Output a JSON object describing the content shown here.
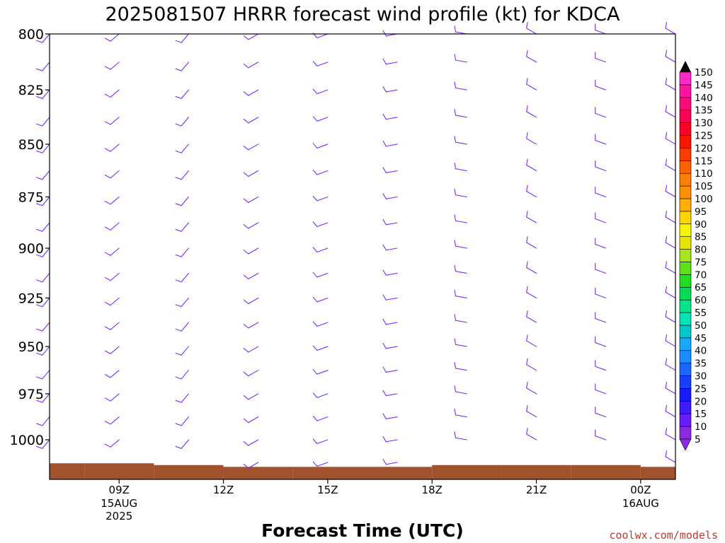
{
  "chart_data": {
    "type": "wind_profile",
    "title": "2025081507 HRRR forecast wind profile (kt) for KDCA",
    "xlabel": "Forecast Time (UTC)",
    "ylabel": "",
    "y_axis": {
      "unit": "hPa",
      "inverted": true,
      "range": [
        800,
        1022
      ],
      "ticks": [
        800,
        825,
        850,
        875,
        900,
        925,
        950,
        975,
        1000
      ]
    },
    "x_axis": {
      "range_hours": [
        7,
        25
      ],
      "ticks": [
        {
          "hour": 9,
          "label": "09Z",
          "sub": [
            "15AUG",
            "2025"
          ]
        },
        {
          "hour": 12,
          "label": "12Z",
          "sub": []
        },
        {
          "hour": 15,
          "label": "15Z",
          "sub": []
        },
        {
          "hour": 18,
          "label": "18Z",
          "sub": []
        },
        {
          "hour": 21,
          "label": "21Z",
          "sub": []
        },
        {
          "hour": 24,
          "label": "00Z",
          "sub": [
            "16AUG"
          ]
        }
      ]
    },
    "barb_color": "#7b2cff",
    "columns": [
      {
        "hour": 7,
        "direction": 220,
        "speed": 10,
        "sfc": 1013
      },
      {
        "hour": 9,
        "direction": 230,
        "speed": 10,
        "sfc": 1013
      },
      {
        "hour": 11,
        "direction": 220,
        "speed": 10,
        "sfc": 1014
      },
      {
        "hour": 13,
        "direction": 240,
        "speed": 10,
        "sfc": 1015
      },
      {
        "hour": 15,
        "direction": 250,
        "speed": 10,
        "sfc": 1015
      },
      {
        "hour": 17,
        "direction": 260,
        "speed": 10,
        "sfc": 1015
      },
      {
        "hour": 19,
        "direction": 280,
        "speed": 10,
        "sfc": 1014
      },
      {
        "hour": 21,
        "direction": 300,
        "speed": 10,
        "sfc": 1014
      },
      {
        "hour": 23,
        "direction": 290,
        "speed": 10,
        "sfc": 1014
      },
      {
        "hour": 25,
        "direction": 300,
        "speed": 10,
        "sfc": 1015
      }
    ],
    "terrain_color": "#a0522d",
    "colorbar": {
      "values": [
        5,
        10,
        15,
        20,
        25,
        30,
        35,
        40,
        45,
        50,
        55,
        60,
        65,
        70,
        75,
        80,
        85,
        90,
        95,
        100,
        105,
        110,
        115,
        120,
        125,
        130,
        135,
        140,
        145,
        150
      ],
      "colors": [
        "#8a2be2",
        "#6a1bff",
        "#3d1aff",
        "#1a1aff",
        "#1a3dff",
        "#1a66ff",
        "#1a8cff",
        "#1aa8ff",
        "#00c8c8",
        "#00e5b8",
        "#00e58a",
        "#00dd55",
        "#22dd22",
        "#5be01a",
        "#a6e61a",
        "#e6e600",
        "#f5f500",
        "#ffd700",
        "#ffb000",
        "#ff9000",
        "#ff7f00",
        "#ff6200",
        "#ff3c00",
        "#ff1400",
        "#ff0028",
        "#ff0055",
        "#ff0a7a",
        "#ff14a0",
        "#ff28c8",
        "#ff40ff"
      ],
      "top_arrow_color": "#000000",
      "bottom_arrow_color": "#8a2be2"
    }
  },
  "credit": "coolwx.com/models"
}
